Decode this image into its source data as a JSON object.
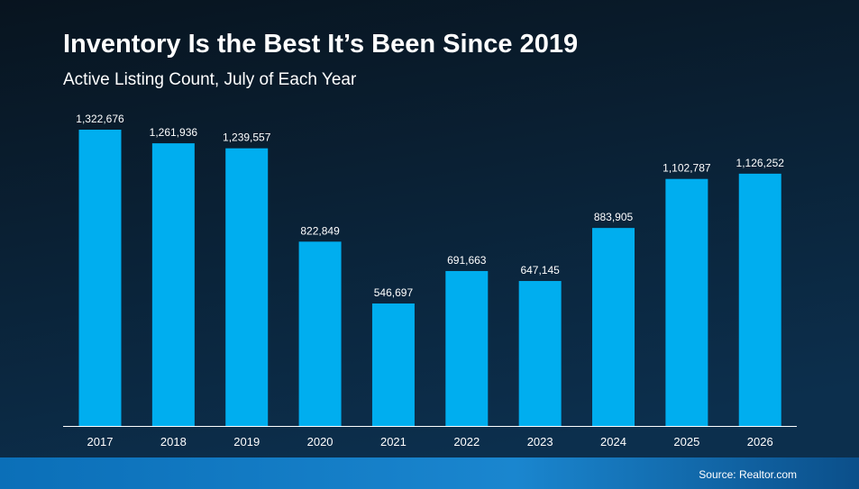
{
  "chart_data": {
    "type": "bar",
    "title": "Inventory Is the Best It’s Been Since 2019",
    "subtitle": "Active Listing Count, July of Each Year",
    "source": "Source: Realtor.com",
    "categories": [
      "2017",
      "2018",
      "2019",
      "2020",
      "2021",
      "2022",
      "2023",
      "2024",
      "2025",
      "2026"
    ],
    "values": [
      1322676,
      1261936,
      1239557,
      822849,
      546697,
      691663,
      647145,
      883905,
      1102787,
      1126252
    ],
    "value_labels": [
      "1,322,676",
      "1,261,936",
      "1,239,557",
      "822,849",
      "546,697",
      "691,663",
      "647,145",
      "883,905",
      "1,102,787",
      "1,126,252"
    ],
    "color": "#00aeef"
  }
}
